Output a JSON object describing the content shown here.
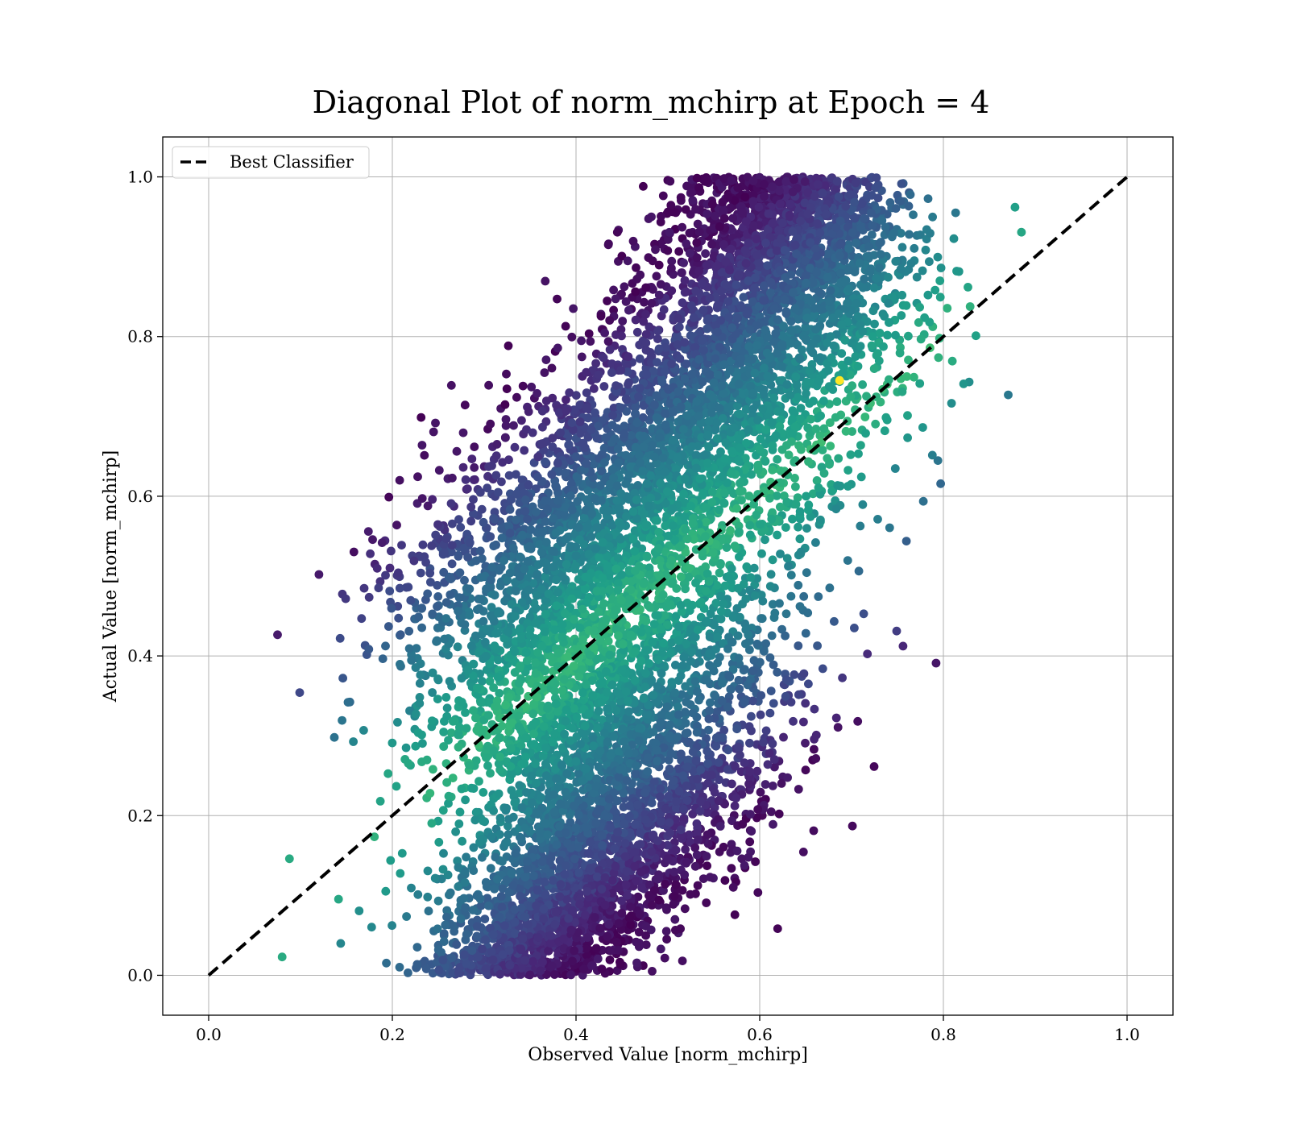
{
  "chart_data": {
    "type": "scatter",
    "title": "Diagonal Plot of norm_mchirp at Epoch = 4",
    "xlabel": "Observed Value [norm_mchirp]",
    "ylabel": "Actual Value [norm_mchirp]",
    "xlim": [
      -0.05,
      1.05
    ],
    "ylim": [
      -0.05,
      1.05
    ],
    "xticks": [
      0.0,
      0.2,
      0.4,
      0.6,
      0.8,
      1.0
    ],
    "yticks": [
      0.0,
      0.2,
      0.4,
      0.6,
      0.8,
      1.0
    ],
    "xtick_labels": [
      "0.0",
      "0.2",
      "0.4",
      "0.6",
      "0.8",
      "1.0"
    ],
    "ytick_labels": [
      "0.0",
      "0.2",
      "0.4",
      "0.6",
      "0.8",
      "1.0"
    ],
    "grid": true,
    "colormap": "viridis",
    "legend": {
      "placement": "top-left",
      "entries": [
        "Best Classifier"
      ]
    },
    "reference_line": {
      "name": "Best Classifier",
      "style": "dashed",
      "color": "#000000",
      "x": [
        0.0,
        1.0
      ],
      "y": [
        0.0,
        1.0
      ]
    },
    "point_color_range": [
      "#440154",
      "#fde725"
    ],
    "highlighted_points": [
      {
        "x": 0.687,
        "y": 0.745
      },
      {
        "x": 0.792,
        "y": 0.391
      },
      {
        "x": 0.208,
        "y": 0.62
      },
      {
        "x": 0.176,
        "y": 0.528
      },
      {
        "x": 0.088,
        "y": 0.146
      },
      {
        "x": 0.08,
        "y": 0.023
      },
      {
        "x": 0.878,
        "y": 0.962
      },
      {
        "x": 0.593,
        "y": 0.995
      }
    ]
  }
}
